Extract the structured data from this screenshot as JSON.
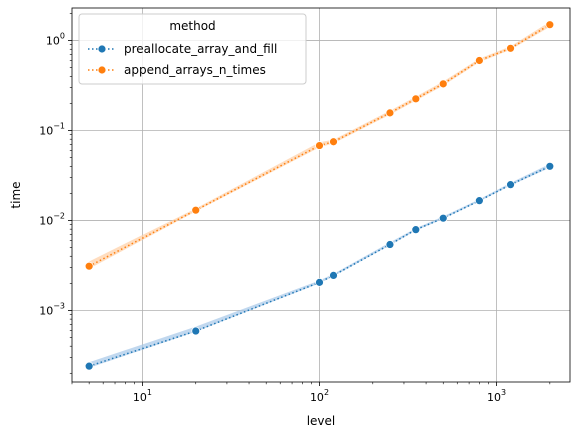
{
  "chart_data": {
    "type": "line",
    "xlabel": "level",
    "ylabel": "time",
    "xscale": "log",
    "yscale": "log",
    "xlim": [
      4,
      2600
    ],
    "ylim": [
      0.00016,
      2.3
    ],
    "grid": true,
    "legend": {
      "title": "method",
      "placement": "top-left"
    },
    "x_ticks": [
      {
        "value": 10,
        "base": "10",
        "exp": "1"
      },
      {
        "value": 100,
        "base": "10",
        "exp": "2"
      },
      {
        "value": 1000,
        "base": "10",
        "exp": "3"
      }
    ],
    "y_ticks": [
      {
        "value": 0.001,
        "base": "10",
        "exp": "−3"
      },
      {
        "value": 0.01,
        "base": "10",
        "exp": "−2"
      },
      {
        "value": 0.1,
        "base": "10",
        "exp": "−1"
      },
      {
        "value": 1,
        "base": "10",
        "exp": "0"
      }
    ],
    "series": [
      {
        "name": "preallocate_array_and_fill",
        "color": "#1f77b4",
        "band_color": "#a6c8e8",
        "x": [
          5,
          20,
          100,
          120,
          250,
          350,
          500,
          800,
          1200,
          2000
        ],
        "y": [
          0.00024,
          0.00059,
          0.00205,
          0.00245,
          0.0054,
          0.0079,
          0.0106,
          0.0166,
          0.025,
          0.04
        ],
        "band_low": [
          0.00023,
          0.00058,
          0.002,
          0.0024,
          0.0053,
          0.0077,
          0.0104,
          0.0163,
          0.0245,
          0.0385
        ],
        "band_high": [
          0.000265,
          0.00066,
          0.00215,
          0.00255,
          0.0057,
          0.0082,
          0.0111,
          0.0172,
          0.0262,
          0.0425
        ]
      },
      {
        "name": "append_arrays_n_times",
        "color": "#ff7f0e",
        "band_color": "#ffcfa4",
        "x": [
          5,
          20,
          100,
          120,
          250,
          350,
          500,
          800,
          1200,
          2000
        ],
        "y": [
          0.0031,
          0.013,
          0.068,
          0.075,
          0.157,
          0.225,
          0.33,
          0.6,
          0.82,
          1.5
        ],
        "band_low": [
          0.0029,
          0.0126,
          0.065,
          0.072,
          0.15,
          0.215,
          0.315,
          0.575,
          0.79,
          1.42
        ],
        "band_high": [
          0.0035,
          0.0136,
          0.074,
          0.079,
          0.166,
          0.238,
          0.35,
          0.63,
          0.86,
          1.62
        ]
      }
    ]
  }
}
